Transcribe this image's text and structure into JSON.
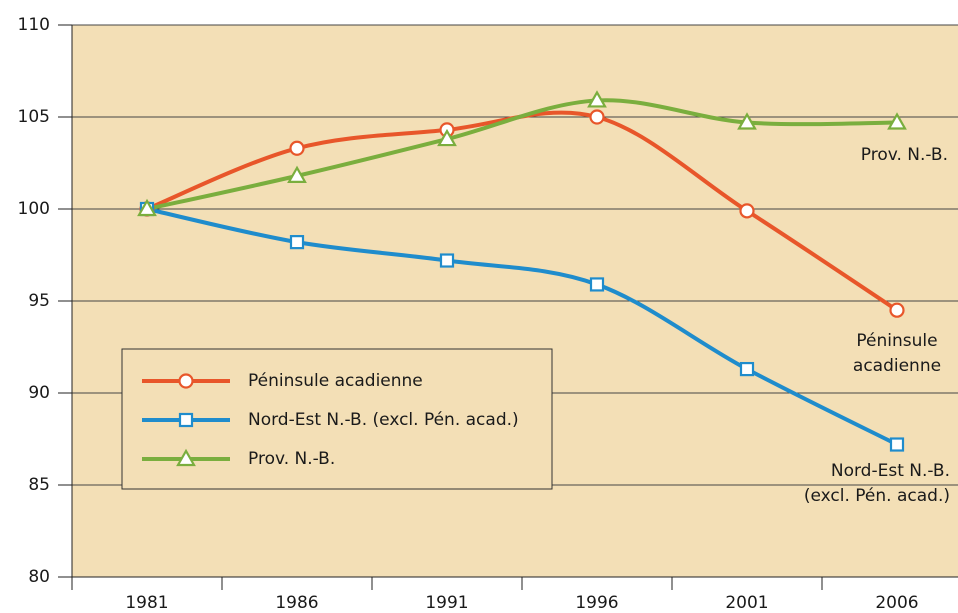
{
  "chart_data": {
    "type": "line",
    "categories": [
      "1981",
      "1986",
      "1991",
      "1996",
      "2001",
      "2006"
    ],
    "series": [
      {
        "name": "Péninsule acadienne",
        "color": "#e8562a",
        "marker": "circle",
        "values": [
          100,
          103.3,
          104.3,
          105.0,
          99.9,
          94.5
        ]
      },
      {
        "name": "Nord-Est N.-B. (excl. Pén. acad.)",
        "color": "#1f8ccc",
        "marker": "square",
        "values": [
          100,
          98.2,
          97.2,
          95.9,
          91.3,
          87.2
        ]
      },
      {
        "name": "Prov. N.-B.",
        "color": "#7aae3e",
        "marker": "triangle",
        "values": [
          100,
          101.8,
          103.8,
          105.9,
          104.7,
          104.7
        ]
      }
    ],
    "annotations": [
      {
        "lines": [
          "Prov. N.-B."
        ]
      },
      {
        "lines": [
          "Péninsule",
          "acadienne"
        ]
      },
      {
        "lines": [
          "Nord-Est N.-B.",
          "(excl. Pén. acad.)"
        ]
      }
    ],
    "ylim": [
      80,
      110
    ],
    "yticks": [
      80,
      85,
      90,
      95,
      100,
      105,
      110
    ],
    "grid": true
  }
}
